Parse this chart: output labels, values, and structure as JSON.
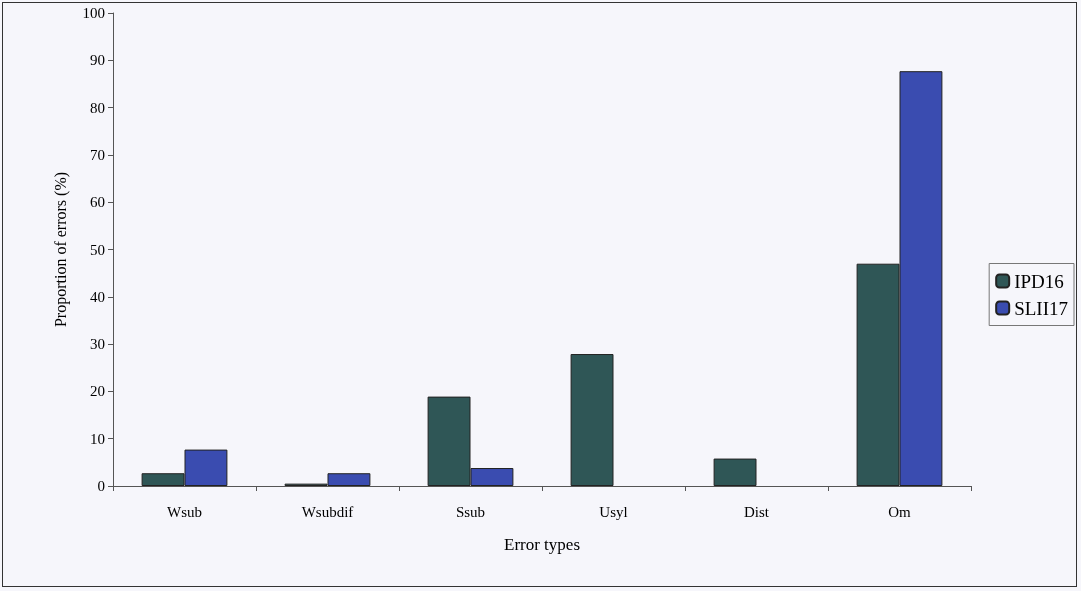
{
  "chart_data": {
    "type": "bar",
    "xlabel": "Error types",
    "ylabel": "Proportion of errors (%)",
    "categories": [
      "Wsub",
      "Wsubdif",
      "Ssub",
      "Usyl",
      "Dist",
      "Om"
    ],
    "series": [
      {
        "name": "IPD16",
        "color": "#2f5656",
        "values": [
          2.7,
          0.5,
          18.9,
          27.9,
          5.8,
          47
        ]
      },
      {
        "name": "SLII17",
        "color": "#3a4cb0",
        "values": [
          7.7,
          2.7,
          3.8,
          null,
          null,
          87.7
        ]
      }
    ],
    "ylim": [
      0,
      100
    ],
    "yticks": [
      0,
      10,
      20,
      30,
      40,
      50,
      60,
      70,
      80,
      90,
      100
    ],
    "grid": false,
    "legend": "right"
  }
}
